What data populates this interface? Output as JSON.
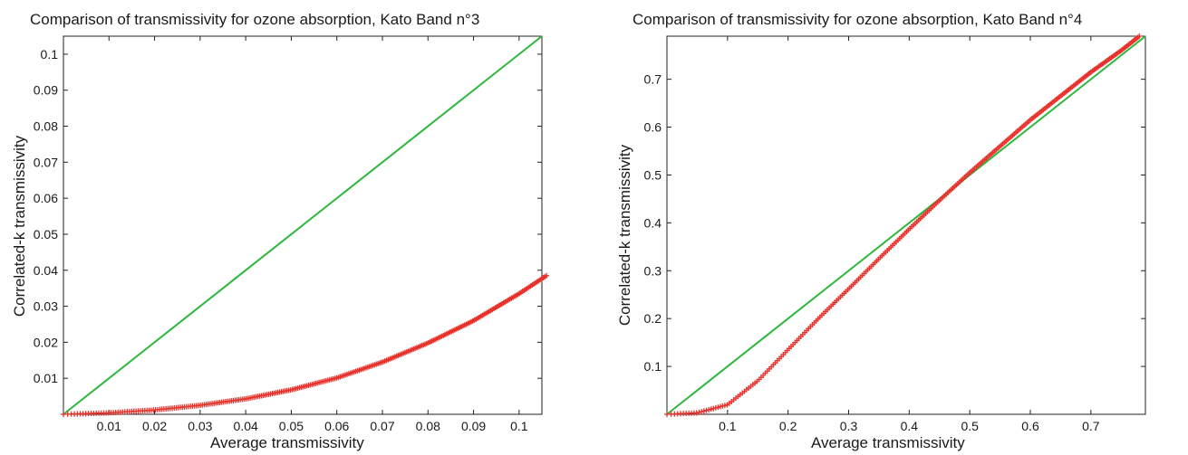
{
  "chart_data": [
    {
      "type": "scatter",
      "title": "Comparison of transmissivity for ozone absorption, Kato Band n°3",
      "xlabel": "Average transmissivity",
      "ylabel": "Correlated-k transmissivity",
      "xlim": [
        0,
        0.105
      ],
      "ylim": [
        0,
        0.105
      ],
      "xticks": [
        "0.01",
        "0.02",
        "0.03",
        "0.04",
        "0.05",
        "0.06",
        "0.07",
        "0.08",
        "0.09",
        "0.1"
      ],
      "yticks": [
        "0.01",
        "0.02",
        "0.03",
        "0.04",
        "0.05",
        "0.06",
        "0.07",
        "0.08",
        "0.09",
        "0.1"
      ],
      "series": [
        {
          "kind": "line",
          "color": "#2db83d",
          "x": [
            0,
            0.105
          ],
          "y": [
            0,
            0.105
          ]
        },
        {
          "kind": "markers",
          "marker": "+",
          "color": "#e8302a",
          "x": [
            0,
            0.01,
            0.02,
            0.03,
            0.04,
            0.05,
            0.06,
            0.07,
            0.08,
            0.09,
            0.1,
            0.106
          ],
          "y": [
            0,
            0.0004,
            0.0012,
            0.0025,
            0.0043,
            0.0068,
            0.0101,
            0.0145,
            0.0198,
            0.026,
            0.0335,
            0.0385
          ]
        }
      ]
    },
    {
      "type": "scatter",
      "title": "Comparison of transmissivity for ozone absorption, Kato Band n°4",
      "xlabel": "Average transmissivity",
      "ylabel": "Correlated-k transmissivity",
      "xlim": [
        0,
        0.79
      ],
      "ylim": [
        0,
        0.79
      ],
      "xticks": [
        "0.1",
        "0.2",
        "0.3",
        "0.4",
        "0.5",
        "0.6",
        "0.7"
      ],
      "yticks": [
        "0.1",
        "0.2",
        "0.3",
        "0.4",
        "0.5",
        "0.6",
        "0.7"
      ],
      "series": [
        {
          "kind": "line",
          "color": "#2db83d",
          "x": [
            0,
            0.79
          ],
          "y": [
            0,
            0.79
          ]
        },
        {
          "kind": "markers",
          "marker": "+",
          "color": "#e8302a",
          "x": [
            0,
            0.05,
            0.1,
            0.15,
            0.2,
            0.25,
            0.3,
            0.35,
            0.4,
            0.45,
            0.5,
            0.55,
            0.6,
            0.65,
            0.7,
            0.75,
            0.78
          ],
          "y": [
            0,
            0.003,
            0.02,
            0.07,
            0.135,
            0.2,
            0.262,
            0.325,
            0.387,
            0.447,
            0.505,
            0.56,
            0.615,
            0.665,
            0.715,
            0.76,
            0.79
          ]
        }
      ]
    }
  ]
}
